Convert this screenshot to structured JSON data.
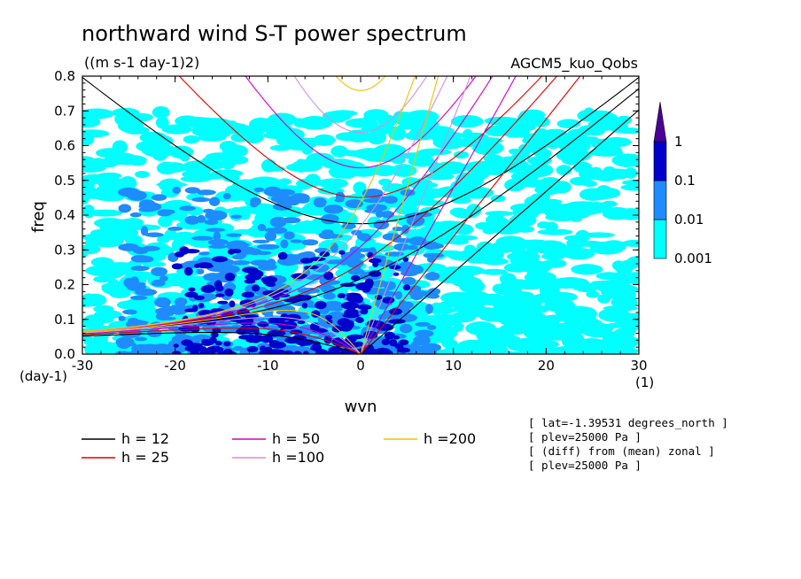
{
  "header": {
    "title": "northward wind S-T power spectrum",
    "units": "((m s-1 day-1)2)",
    "model": "AGCM5_kuo_Qobs"
  },
  "info_lines": [
    "[ lat=-1.39531 degrees_north ]",
    "[ plev=25000 Pa ]",
    "[ (diff) from (mean) zonal ]",
    "[ plev=25000 Pa ]"
  ],
  "colorbar": {
    "levels": [
      "0.001",
      "0.01",
      "0.1",
      "1"
    ],
    "colors": [
      "#00ffff",
      "#1e8cff",
      "#0000cd",
      "#4b0096"
    ]
  },
  "chart_data": {
    "type": "contour",
    "title": "northward wind S-T power spectrum",
    "xlabel": "wvn",
    "ylabel": "freq",
    "x_unit_label": "(1)",
    "y_unit_label": "(day-1)",
    "xlim": [
      -30,
      30
    ],
    "ylim": [
      0,
      0.8
    ],
    "x_ticks": [
      "-30",
      "-20",
      "-10",
      "0",
      "10",
      "20",
      "30"
    ],
    "y_ticks": [
      "0.0",
      "0.1",
      "0.2",
      "0.3",
      "0.4",
      "0.5",
      "0.6",
      "0.7",
      "0.8"
    ],
    "dispersion_curves": [
      {
        "label": "h = 12",
        "h": 12,
        "color": "#000000"
      },
      {
        "label": "h = 25",
        "h": 25,
        "color": "#e00000"
      },
      {
        "label": "h = 50",
        "h": 50,
        "color": "#d000c0"
      },
      {
        "label": "h =100",
        "h": 100,
        "color": "#d090e0"
      },
      {
        "label": "h =200",
        "h": 200,
        "color": "#f0c000"
      }
    ],
    "power_regions": [
      {
        "level": "0.001",
        "color": "#00ffff",
        "xlim": [
          -30,
          30
        ],
        "ylim": [
          0,
          0.7
        ]
      },
      {
        "level": "0.01",
        "color": "#1e8cff",
        "xlim": [
          -26,
          8
        ],
        "ylim": [
          0,
          0.48
        ]
      },
      {
        "level": "0.1",
        "color": "#0000cd",
        "xlim": [
          -20,
          5
        ],
        "ylim": [
          0,
          0.3
        ]
      }
    ]
  }
}
